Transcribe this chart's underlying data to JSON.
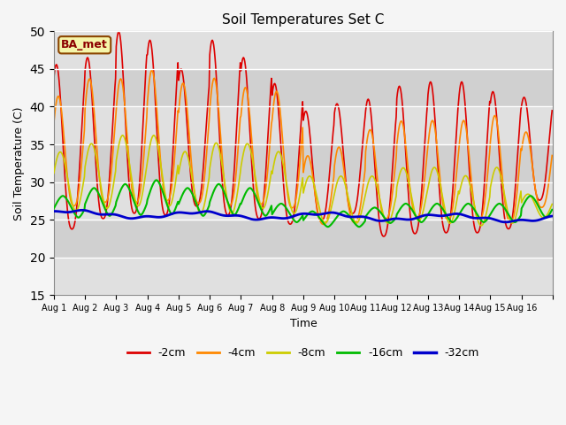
{
  "title": "Soil Temperatures Set C",
  "xlabel": "Time",
  "ylabel": "Soil Temperature (C)",
  "ylim": [
    15,
    50
  ],
  "yticks": [
    15,
    20,
    25,
    30,
    35,
    40,
    45,
    50
  ],
  "annotation": "BA_met",
  "legend": [
    "-2cm",
    "-4cm",
    "-8cm",
    "-16cm",
    "-32cm"
  ],
  "colors": [
    "#dd0000",
    "#ff8800",
    "#cccc00",
    "#00bb00",
    "#0000cc"
  ],
  "linewidths": [
    1.2,
    1.2,
    1.2,
    1.5,
    2.0
  ],
  "x_tick_labels": [
    "Aug 1",
    "Aug 2",
    "Aug 3",
    "Aug 4",
    "Aug 5",
    "Aug 6",
    "Aug 7",
    "Aug 8",
    "Aug 9",
    "Aug 10",
    "Aug 11",
    "Aug 12",
    "Aug 13",
    "Aug 14",
    "Aug 15",
    "Aug 16"
  ],
  "n_days": 16,
  "pts_per_day": 48,
  "band_colors": [
    "#dcdcdc",
    "#e8e8e8"
  ],
  "facecolor": "#e8e8e8",
  "figbg": "#f5f5f5"
}
